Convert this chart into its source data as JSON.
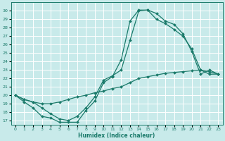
{
  "xlabel": "Humidex (Indice chaleur)",
  "bg_color": "#c8eaea",
  "line_color": "#1a7a6a",
  "grid_color": "#ffffff",
  "xlim": [
    -0.5,
    23.5
  ],
  "ylim": [
    16.5,
    31.0
  ],
  "yticks": [
    17,
    18,
    19,
    20,
    21,
    22,
    23,
    24,
    25,
    26,
    27,
    28,
    29,
    30
  ],
  "xticks": [
    0,
    1,
    2,
    3,
    4,
    5,
    6,
    7,
    8,
    9,
    10,
    11,
    12,
    13,
    14,
    15,
    16,
    17,
    18,
    19,
    20,
    21,
    22,
    23
  ],
  "line1_x": [
    0,
    1,
    2,
    3,
    4,
    5,
    6,
    7,
    8,
    9,
    10,
    11,
    12,
    13,
    14,
    15,
    16,
    17,
    18,
    19,
    20,
    21,
    22,
    23
  ],
  "line1_y": [
    20.0,
    19.2,
    18.5,
    17.5,
    17.3,
    16.8,
    16.8,
    16.8,
    18.2,
    19.3,
    21.5,
    22.2,
    24.2,
    28.8,
    30.1,
    30.1,
    29.7,
    28.8,
    28.4,
    27.3,
    25.2,
    22.5,
    23.0,
    22.5
  ],
  "line2_x": [
    0,
    1,
    2,
    3,
    4,
    5,
    6,
    7,
    8,
    9,
    10,
    11,
    12,
    13,
    14,
    15,
    16,
    17,
    18,
    19,
    20,
    21,
    22,
    23
  ],
  "line2_y": [
    20.0,
    19.5,
    19.2,
    18.5,
    17.8,
    17.2,
    17.0,
    17.5,
    18.5,
    19.8,
    21.8,
    22.3,
    23.0,
    26.5,
    30.0,
    30.1,
    29.0,
    28.5,
    27.8,
    27.0,
    25.5,
    23.0,
    22.5,
    22.5
  ],
  "line3_x": [
    0,
    1,
    2,
    3,
    4,
    5,
    6,
    7,
    8,
    9,
    10,
    11,
    12,
    13,
    14,
    15,
    16,
    17,
    18,
    19,
    20,
    21,
    22,
    23
  ],
  "line3_y": [
    20.0,
    19.5,
    19.2,
    19.0,
    19.0,
    19.2,
    19.5,
    19.8,
    20.0,
    20.3,
    20.5,
    20.8,
    21.0,
    21.5,
    22.0,
    22.2,
    22.4,
    22.6,
    22.7,
    22.8,
    22.9,
    23.0,
    22.8,
    22.5
  ]
}
